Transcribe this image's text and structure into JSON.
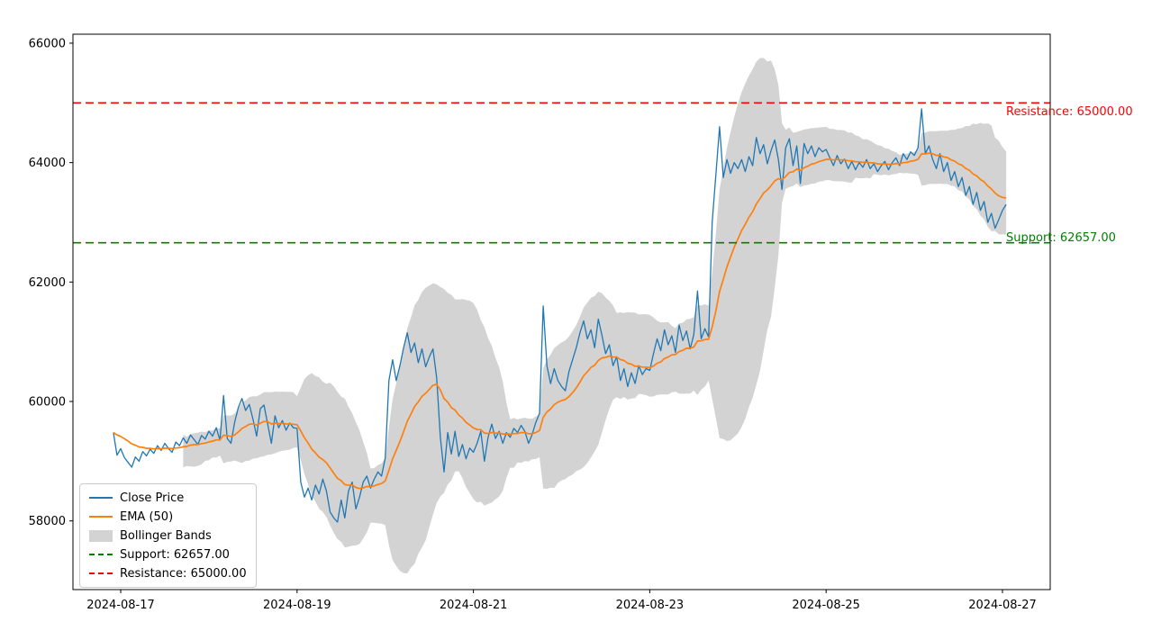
{
  "figure": {
    "background": "#ffffff"
  },
  "chart_data": {
    "type": "line",
    "title": "",
    "x_axis": {
      "start": "2024-08-16 22:00",
      "freq": "1h",
      "tick_labels": [
        "2024-08-17",
        "2024-08-19",
        "2024-08-21",
        "2024-08-23",
        "2024-08-25",
        "2024-08-27"
      ],
      "tick_indices": [
        2,
        50,
        98,
        146,
        194,
        242
      ],
      "index_range": [
        -11,
        255
      ]
    },
    "y_axis": {
      "tick_values": [
        58000,
        60000,
        62000,
        64000,
        66000
      ],
      "range": [
        56850,
        66150
      ]
    },
    "series": [
      {
        "name": "Close Price",
        "type": "line",
        "color": "#1f77b4",
        "values": [
          59480,
          59100,
          59210,
          59060,
          58980,
          58900,
          59070,
          59000,
          59160,
          59090,
          59200,
          59130,
          59260,
          59180,
          59300,
          59210,
          59150,
          59320,
          59260,
          59390,
          59300,
          59440,
          59360,
          59280,
          59430,
          59370,
          59500,
          59420,
          59560,
          59350,
          60100,
          59380,
          59300,
          59650,
          59900,
          60050,
          59850,
          59950,
          59700,
          59420,
          59880,
          59940,
          59620,
          59300,
          59760,
          59560,
          59680,
          59520,
          59640,
          59560,
          59550,
          58650,
          58400,
          58550,
          58350,
          58600,
          58450,
          58700,
          58500,
          58150,
          58050,
          57980,
          58350,
          58050,
          58500,
          58650,
          58200,
          58400,
          58650,
          58750,
          58550,
          58700,
          58820,
          58750,
          59050,
          60350,
          60700,
          60350,
          60600,
          60900,
          61150,
          60820,
          60980,
          60650,
          60880,
          60580,
          60750,
          60880,
          60400,
          59400,
          58820,
          59480,
          59120,
          59500,
          59080,
          59280,
          59040,
          59220,
          59150,
          59300,
          59500,
          59000,
          59400,
          59620,
          59380,
          59500,
          59300,
          59480,
          59400,
          59550,
          59480,
          59600,
          59500,
          59300,
          59450,
          59650,
          59800,
          61600,
          60600,
          60300,
          60550,
          60350,
          60250,
          60180,
          60500,
          60700,
          60900,
          61150,
          61350,
          61050,
          61200,
          60900,
          61380,
          61100,
          60800,
          60950,
          60600,
          60750,
          60350,
          60550,
          60250,
          60480,
          60300,
          60600,
          60450,
          60550,
          60520,
          60800,
          61050,
          60850,
          61200,
          60950,
          61100,
          60820,
          61280,
          61020,
          61180,
          60880,
          61120,
          61850,
          61050,
          61220,
          61080,
          63000,
          63800,
          64600,
          63750,
          64050,
          63820,
          64000,
          63900,
          64050,
          63850,
          64100,
          63950,
          64420,
          64150,
          64300,
          63980,
          64200,
          64380,
          64050,
          63550,
          64250,
          64400,
          63950,
          64280,
          63650,
          64320,
          64150,
          64280,
          64100,
          64250,
          64180,
          64220,
          64080,
          63950,
          64120,
          63980,
          64060,
          63900,
          64020,
          63880,
          64000,
          63920,
          64050,
          63900,
          63980,
          63850,
          63950,
          64020,
          63880,
          64000,
          64080,
          63950,
          64150,
          64050,
          64180,
          64120,
          64250,
          64900,
          64150,
          64280,
          64050,
          63900,
          64150,
          63850,
          64000,
          63700,
          63850,
          63600,
          63750,
          63450,
          63600,
          63300,
          63500,
          63200,
          63350,
          63000,
          63150,
          62900,
          63050,
          63200,
          63300
        ]
      },
      {
        "name": "EMA (50)",
        "type": "line",
        "color": "#ff7f0e",
        "derived_from": "Close Price",
        "method": "ema"
      },
      {
        "name": "Bollinger Bands",
        "type": "band",
        "color": "#d3d3d3",
        "derived_from": "Close Price",
        "method": "rolling_mean_plus_minus_2_std"
      }
    ],
    "levels": [
      {
        "name": "Support",
        "value": 62657.0,
        "label": "Support: 62657.00",
        "color": "#008000",
        "style": "dashed"
      },
      {
        "name": "Resistance",
        "value": 65000.0,
        "label": "Resistance: 65000.00",
        "color": "#ff0000",
        "style": "dashed"
      }
    ],
    "legend": {
      "position": "lower-left",
      "items": [
        {
          "label": "Close Price",
          "swatch": "line",
          "color": "#1f77b4"
        },
        {
          "label": "EMA (50)",
          "swatch": "line",
          "color": "#ff7f0e"
        },
        {
          "label": "Bollinger Bands",
          "swatch": "patch",
          "color": "#d3d3d3"
        },
        {
          "label": "Support: 62657.00",
          "swatch": "dashed",
          "color": "#008000"
        },
        {
          "label": "Resistance: 65000.00",
          "swatch": "dashed",
          "color": "#ff0000"
        }
      ]
    }
  }
}
